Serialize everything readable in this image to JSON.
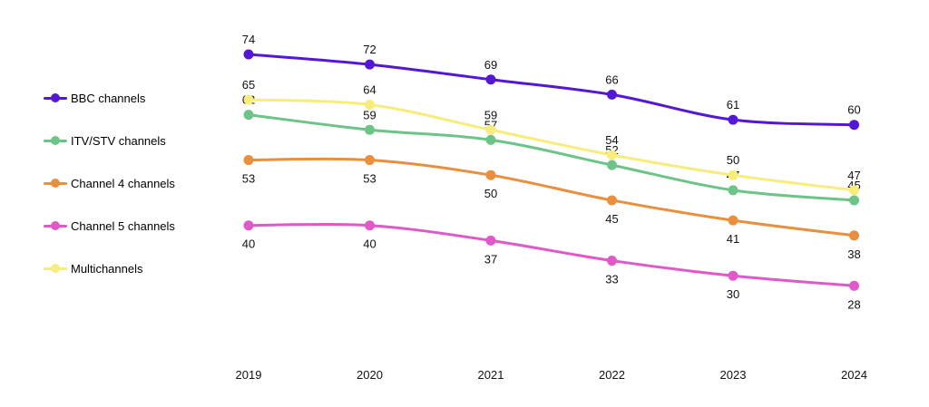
{
  "chart_data": {
    "type": "line",
    "title": "",
    "xlabel": "",
    "ylabel": "",
    "x": [
      "2019",
      "2020",
      "2021",
      "2022",
      "2023",
      "2024"
    ],
    "grid": false,
    "legend_position": "left",
    "series": [
      {
        "name": "BBC channels",
        "color": "#5417d8",
        "values": [
          74,
          72,
          69,
          66,
          61,
          60
        ],
        "label_position": "above"
      },
      {
        "name": "ITV/STV channels",
        "color": "#6cc486",
        "values": [
          62,
          59,
          57,
          52,
          47,
          45
        ],
        "label_position": "above"
      },
      {
        "name": "Channel 4 channels",
        "color": "#e98f3d",
        "values": [
          53,
          53,
          50,
          45,
          41,
          38
        ],
        "label_position": "below"
      },
      {
        "name": "Channel 5 channels",
        "color": "#e158c8",
        "values": [
          40,
          40,
          37,
          33,
          30,
          28
        ],
        "label_position": "below"
      },
      {
        "name": "Multichannels",
        "color": "#f8ec7a",
        "values": [
          65,
          64,
          59,
          54,
          50,
          47
        ],
        "label_position": "above"
      }
    ]
  }
}
